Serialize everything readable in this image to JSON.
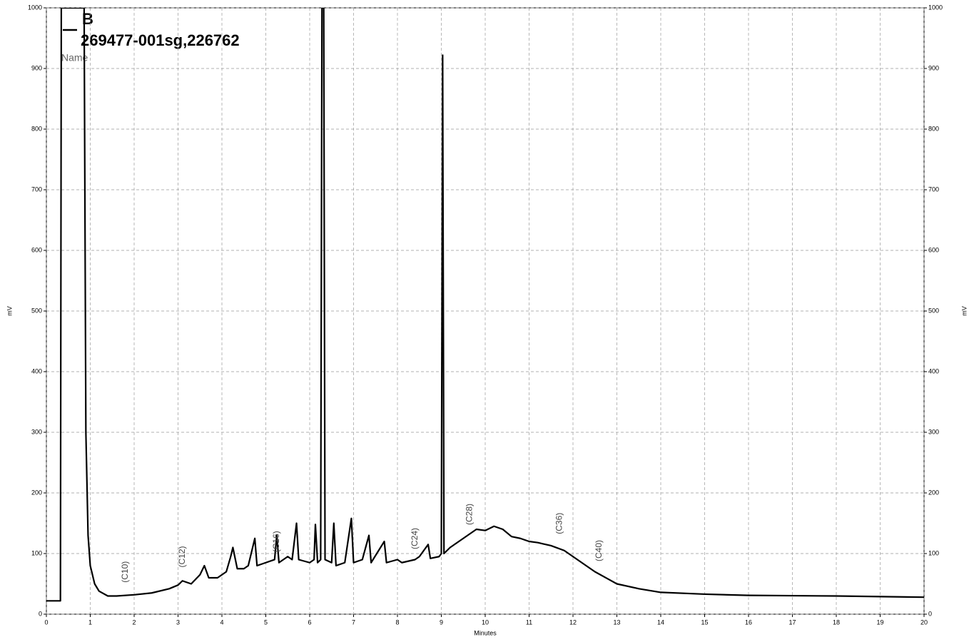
{
  "chart_data": {
    "type": "line",
    "title": "269477-001sg,226762",
    "legend_title": "Name",
    "xlabel": "Minutes",
    "ylabel": "mV",
    "y2label": "mV",
    "x": [
      0,
      0.32,
      0.34,
      0.86,
      0.9,
      0.95,
      1.0,
      1.1,
      1.2,
      1.4,
      1.6,
      2.0,
      2.4,
      2.8,
      3.0,
      3.1,
      3.3,
      3.5,
      3.6,
      3.7,
      3.9,
      4.1,
      4.2,
      4.25,
      4.35,
      4.5,
      4.6,
      4.75,
      4.8,
      5.0,
      5.2,
      5.25,
      5.3,
      5.5,
      5.6,
      5.7,
      5.75,
      6.0,
      6.1,
      6.13,
      6.18,
      6.25,
      6.28,
      6.32,
      6.35,
      6.5,
      6.55,
      6.6,
      6.8,
      6.95,
      7.0,
      7.2,
      7.35,
      7.4,
      7.7,
      7.75,
      8.0,
      8.1,
      8.4,
      8.5,
      8.7,
      8.75,
      8.95,
      9.0,
      9.03,
      9.06,
      9.2,
      9.4,
      9.6,
      9.8,
      10.0,
      10.2,
      10.4,
      10.6,
      10.8,
      11.0,
      11.2,
      11.5,
      11.8,
      12.0,
      12.2,
      12.5,
      12.8,
      13.0,
      13.5,
      14.0,
      15.0,
      16.0,
      18.0,
      20.0
    ],
    "series": [
      {
        "name": "B",
        "color": "#000000",
        "values": [
          22,
          22,
          1000,
          1000,
          300,
          130,
          80,
          50,
          38,
          30,
          30,
          32,
          35,
          42,
          48,
          55,
          50,
          65,
          80,
          60,
          60,
          70,
          95,
          110,
          75,
          75,
          80,
          125,
          80,
          85,
          90,
          130,
          85,
          95,
          90,
          150,
          90,
          85,
          90,
          148,
          85,
          90,
          1000,
          1000,
          90,
          85,
          150,
          80,
          85,
          158,
          85,
          90,
          130,
          85,
          120,
          85,
          90,
          85,
          90,
          95,
          115,
          92,
          95,
          100,
          922,
          100,
          110,
          120,
          130,
          140,
          138,
          145,
          140,
          128,
          125,
          120,
          118,
          113,
          105,
          95,
          85,
          70,
          58,
          50,
          42,
          36,
          33,
          31,
          30,
          28
        ]
      }
    ],
    "annotations": [
      {
        "text": "(C10)",
        "x": 1.8,
        "y": 45
      },
      {
        "text": "(C12)",
        "x": 3.1,
        "y": 70
      },
      {
        "text": "(C16)",
        "x": 5.25,
        "y": 95
      },
      {
        "text": "(C24)",
        "x": 8.4,
        "y": 100
      },
      {
        "text": "(C28)",
        "x": 9.65,
        "y": 140
      },
      {
        "text": "(C36)",
        "x": 11.7,
        "y": 125
      },
      {
        "text": "(C40)",
        "x": 12.6,
        "y": 80
      }
    ],
    "xlim": [
      0,
      20
    ],
    "xticks": [
      0,
      1,
      2,
      3,
      4,
      5,
      6,
      7,
      8,
      9,
      10,
      11,
      12,
      13,
      14,
      15,
      16,
      17,
      18,
      19,
      20
    ],
    "ylim": [
      0,
      1000
    ],
    "yticks": [
      0,
      100,
      200,
      300,
      400,
      500,
      600,
      700,
      800,
      900,
      1000
    ],
    "y2lim": [
      0,
      1000
    ],
    "y2ticks": [
      0,
      100,
      200,
      300,
      400,
      500,
      600,
      700,
      800,
      900,
      1000
    ],
    "grid": true
  }
}
